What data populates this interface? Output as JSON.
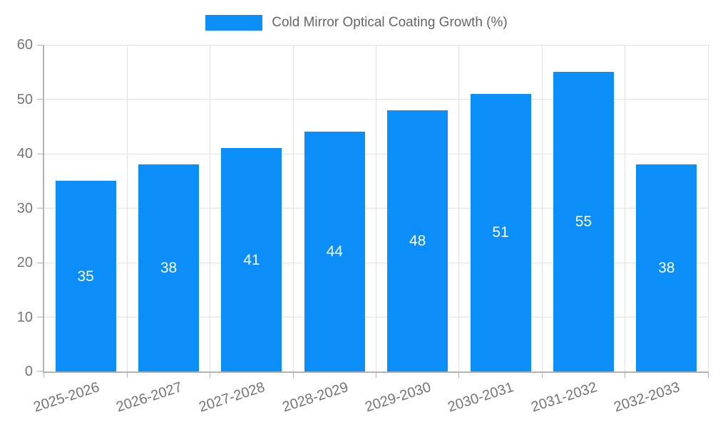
{
  "chart_data": {
    "type": "bar",
    "categories": [
      "2025-2026",
      "2026-2027",
      "2027-2028",
      "2028-2029",
      "2029-2030",
      "2030-2031",
      "2031-2032",
      "2032-2033"
    ],
    "values": [
      35,
      38,
      41,
      44,
      48,
      51,
      55,
      38
    ],
    "title": "",
    "legend": "Cold Mirror Optical Coating Growth (%)",
    "legend_position": "top-center",
    "xlabel": "",
    "ylabel": "",
    "ylim": [
      0,
      60
    ],
    "yticks": [
      0,
      10,
      20,
      30,
      40,
      50,
      60
    ],
    "grid": true,
    "bar_value_labels_shown": true,
    "colors": {
      "bar": "#0b8ef8",
      "bar_value_label": "#ffffff",
      "grid": "#e2e2e2",
      "axis": "#b3b3b3",
      "tick_label": "#757575",
      "legend_text": "#666666",
      "background": "#ffffff"
    }
  }
}
